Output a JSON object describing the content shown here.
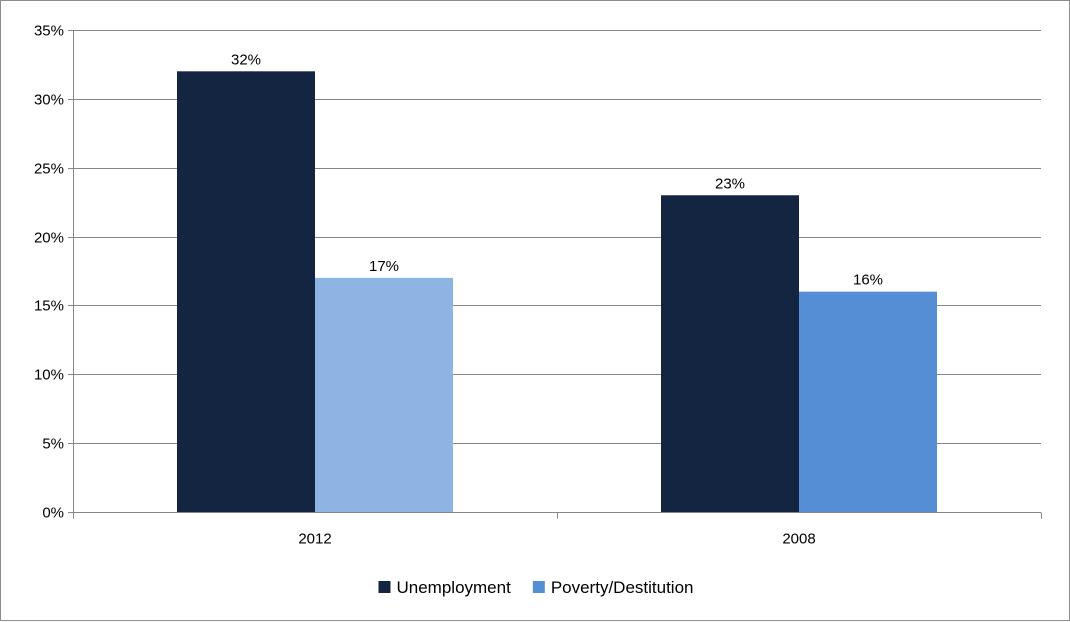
{
  "chart_data": {
    "type": "bar",
    "title": "",
    "xlabel": "",
    "ylabel": "",
    "categories": [
      "2012",
      "2008"
    ],
    "ylim": [
      0,
      35
    ],
    "y_ticks": [
      0,
      5,
      10,
      15,
      20,
      25,
      30,
      35
    ],
    "y_tick_format": "percent",
    "grid": true,
    "legend_position": "bottom",
    "series": [
      {
        "name": "Unemployment",
        "values": [
          32,
          23
        ],
        "color": "#142541",
        "point_colors": [
          "#142541",
          "#142541"
        ],
        "data_labels": [
          "32%",
          "23%"
        ]
      },
      {
        "name": "Poverty/Destitution",
        "values": [
          17,
          16
        ],
        "color": "#558ED5",
        "point_colors": [
          "#8EB4E3",
          "#558ED5"
        ],
        "data_labels": [
          "17%",
          "16%"
        ]
      }
    ]
  }
}
